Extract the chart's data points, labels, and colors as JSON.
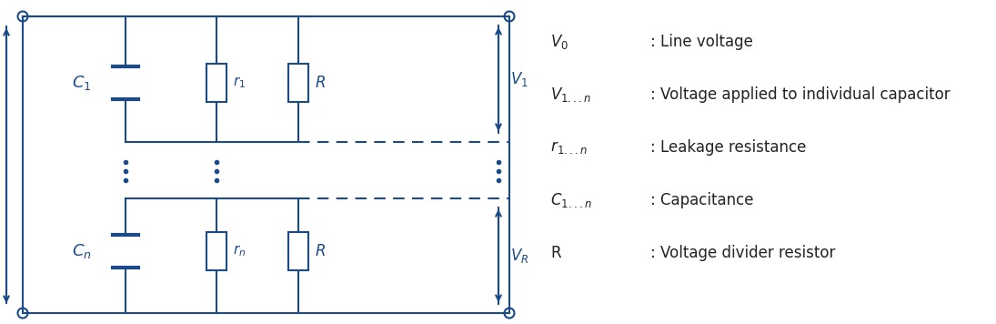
{
  "circuit_color": "#1a4a8a",
  "bg_color": "#ffffff",
  "lw": 1.5,
  "figsize": [
    10.95,
    3.56
  ],
  "dpi": 100,
  "legend_items": [
    {
      "symbol": "V$_0$",
      "desc": ": Line voltage"
    },
    {
      "symbol": "V$_{1...n}$",
      "desc": ": Voltage applied to individual capacitor"
    },
    {
      "symbol": "r$_{1...n}$",
      "desc": ": Leakage resistance"
    },
    {
      "symbol": "C$_{1...n}$",
      "desc": ": Capacitance"
    },
    {
      "symbol": "R",
      "desc": ": Voltage divider resistor"
    }
  ]
}
